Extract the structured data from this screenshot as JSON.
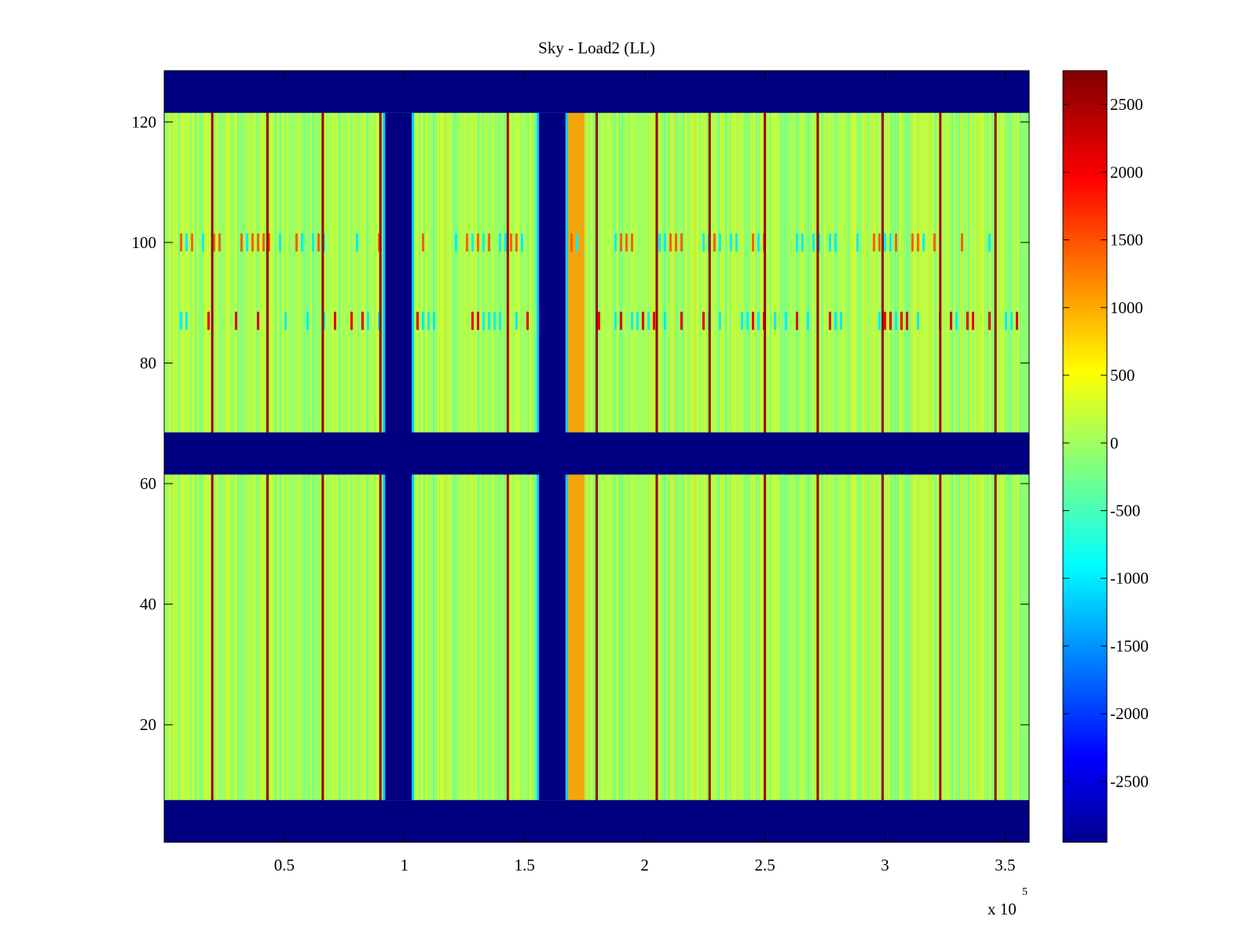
{
  "chart_data": {
    "type": "heatmap",
    "title": "Sky - Load2 (LL)",
    "xlabel": "",
    "ylabel": "",
    "x_exponent_label": "x 10",
    "x_exponent_power": "5",
    "xlim": [
      0,
      3.6
    ],
    "ylim": [
      0.5,
      128.5
    ],
    "x_ticks": [
      {
        "value": 0.5,
        "label": "0.5"
      },
      {
        "value": 1,
        "label": "1"
      },
      {
        "value": 1.5,
        "label": "1.5"
      },
      {
        "value": 2,
        "label": "2"
      },
      {
        "value": 2.5,
        "label": "2.5"
      },
      {
        "value": 3,
        "label": "3"
      },
      {
        "value": 3.5,
        "label": "3.5"
      }
    ],
    "y_ticks": [
      {
        "value": 20,
        "label": "20"
      },
      {
        "value": 40,
        "label": "40"
      },
      {
        "value": 60,
        "label": "60"
      },
      {
        "value": 80,
        "label": "80"
      },
      {
        "value": 100,
        "label": "100"
      },
      {
        "value": 120,
        "label": "120"
      }
    ],
    "colorbar": {
      "colormap": "jet",
      "range": [
        -2950,
        2750
      ],
      "ticks": [
        {
          "value": 2500,
          "label": "2500"
        },
        {
          "value": 2000,
          "label": "2000"
        },
        {
          "value": 1500,
          "label": "1500"
        },
        {
          "value": 1000,
          "label": "1000"
        },
        {
          "value": 500,
          "label": "500"
        },
        {
          "value": 0,
          "label": "0"
        },
        {
          "value": -500,
          "label": "-500"
        },
        {
          "value": -1000,
          "label": "-1000"
        },
        {
          "value": -1500,
          "label": "-1500"
        },
        {
          "value": -2000,
          "label": "-2000"
        },
        {
          "value": -2500,
          "label": "-2500"
        }
      ]
    },
    "background_value": 100,
    "masked_value": -2950,
    "masked_row_bands": [
      [
        0.5,
        7.5
      ],
      [
        61.5,
        68.5
      ],
      [
        121.5,
        128.5
      ]
    ],
    "masked_column_bands": [
      {
        "x_range": [
          0.92,
          1.03
        ],
        "y_range": [
          7.5,
          121.5
        ]
      },
      {
        "x_range": [
          1.56,
          1.67
        ],
        "y_range": [
          7.5,
          121.5
        ]
      }
    ],
    "stripe_columns_x": [
      0.2,
      0.43,
      0.66,
      0.9,
      1.43,
      1.8,
      2.05,
      2.27,
      2.5,
      2.72,
      2.99,
      3.23,
      3.46
    ],
    "stripe_value": 2600,
    "warm_column_band": {
      "x_range": [
        1.67,
        1.75
      ],
      "value": 1200
    },
    "noisy_row_bands": [
      {
        "y_range": [
          98.5,
          101.5
        ],
        "value": 1500
      },
      {
        "y_range": [
          85.5,
          88.5
        ],
        "value": 2200
      }
    ]
  },
  "colors": {
    "masked": "#00008f",
    "background": "#7cff79",
    "axis": "#000000"
  }
}
